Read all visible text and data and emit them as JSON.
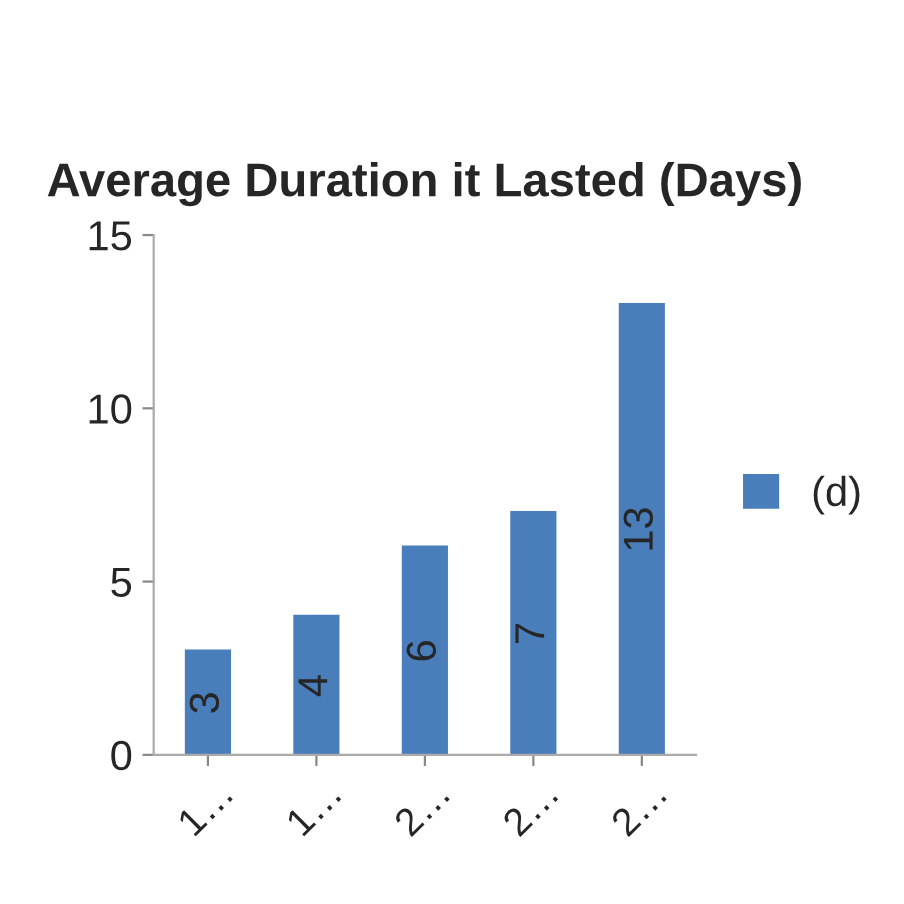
{
  "chart_data": {
    "type": "bar",
    "title": "Average Duration it Lasted (Days)",
    "categories": [
      "1…",
      "1…",
      "2…",
      "2…",
      "2…"
    ],
    "series": [
      {
        "name": "(d)",
        "color": "#4a7ebb",
        "values": [
          3,
          4,
          6,
          7,
          13
        ]
      }
    ],
    "ylim": [
      0,
      15
    ],
    "yticks": [
      0,
      5,
      10,
      15
    ],
    "data_labels": true,
    "legend": "right",
    "grid": false
  }
}
